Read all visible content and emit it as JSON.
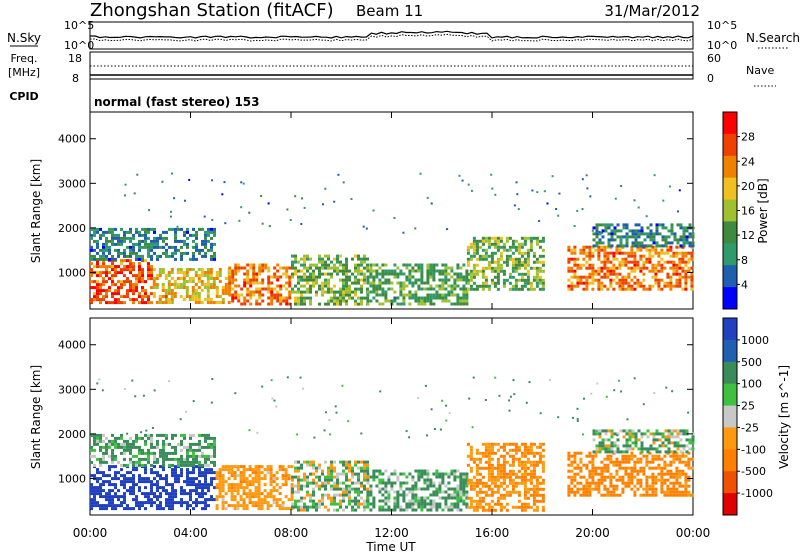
{
  "header": {
    "title": "Zhongshan Station (fitACF)",
    "beam": "Beam 11",
    "date": "31/Mar/2012"
  },
  "top_panels": {
    "nsky_label": "N.Sky",
    "nsky_ticks": [
      "10^5",
      "10^0"
    ],
    "nsearch_label": "N.Search",
    "nsearch_ticks": [
      "10^5",
      "10^0"
    ],
    "freq_label": "Freq.",
    "freq_unit": "[MHz]",
    "freq_ticks": [
      "18",
      "8"
    ],
    "nave_label": "Nave",
    "nave_ticks": [
      "60",
      "0"
    ],
    "cpid_label": "CPID",
    "cpid_text": "normal (fast stereo) 153"
  },
  "colors": {
    "power_scale": [
      "#0000ff",
      "#1f5fb0",
      "#2f9b6a",
      "#3e8a3e",
      "#a0c030",
      "#f0c020",
      "#f08000",
      "#f04000",
      "#ff0000"
    ],
    "velocity_scale": [
      "#2040c0",
      "#2060b0",
      "#3a8c5a",
      "#40c040",
      "#c8c8c8",
      "#ff9a10",
      "#ff8000",
      "#f05000",
      "#e00000"
    ]
  },
  "chart_data": [
    {
      "type": "heatmap",
      "title": "",
      "xlabel": "Time UT",
      "ylabel": "Slant Range [km]",
      "x_ticks": [
        "00:00",
        "04:00",
        "08:00",
        "12:00",
        "16:00",
        "20:00",
        "00:00"
      ],
      "y_ticks": [
        "1000",
        "2000",
        "3000",
        "4000"
      ],
      "xlim": [
        0,
        24
      ],
      "ylim": [
        180,
        4600
      ],
      "colorbar_label": "Power [dB]",
      "colorbar_ticks": [
        "4",
        "8",
        "12",
        "16",
        "20",
        "24",
        "28"
      ],
      "colorbar_range": [
        0,
        32
      ],
      "bands": [
        {
          "t": [
            0,
            2.5
          ],
          "range": [
            300,
            1300
          ],
          "level": 26
        },
        {
          "t": [
            0,
            5
          ],
          "range": [
            1300,
            2000
          ],
          "level": 8
        },
        {
          "t": [
            2.5,
            5.5
          ],
          "range": [
            300,
            1100
          ],
          "level": 20
        },
        {
          "t": [
            5.5,
            8
          ],
          "range": [
            300,
            1200
          ],
          "level": 24
        },
        {
          "t": [
            8,
            11
          ],
          "range": [
            300,
            1400
          ],
          "level": 14
        },
        {
          "t": [
            11,
            15
          ],
          "range": [
            300,
            1200
          ],
          "level": 12
        },
        {
          "t": [
            15,
            18
          ],
          "range": [
            600,
            1800
          ],
          "level": 14
        },
        {
          "t": [
            19,
            24
          ],
          "range": [
            600,
            1600
          ],
          "level": 24
        },
        {
          "t": [
            20,
            24
          ],
          "range": [
            1600,
            2100
          ],
          "level": 8
        }
      ]
    },
    {
      "type": "heatmap",
      "title": "",
      "xlabel": "Time UT",
      "ylabel": "Slant Range [km]",
      "x_ticks": [
        "00:00",
        "04:00",
        "08:00",
        "12:00",
        "16:00",
        "20:00",
        "00:00"
      ],
      "y_ticks": [
        "1000",
        "2000",
        "3000",
        "4000"
      ],
      "xlim": [
        0,
        24
      ],
      "ylim": [
        180,
        4600
      ],
      "colorbar_label": "Velocity [m s^-1]",
      "colorbar_ticks": [
        "1000",
        "500",
        "100",
        "25",
        "-25",
        "-100",
        "-500",
        "-1000"
      ],
      "bands": [
        {
          "t": [
            0,
            5
          ],
          "range": [
            300,
            1300
          ],
          "level": 1000
        },
        {
          "t": [
            0,
            5
          ],
          "range": [
            1300,
            2000
          ],
          "level": 100
        },
        {
          "t": [
            5,
            8
          ],
          "range": [
            300,
            1300
          ],
          "level": -200
        },
        {
          "t": [
            8,
            11
          ],
          "range": [
            300,
            1400
          ],
          "level": 0
        },
        {
          "t": [
            11,
            15
          ],
          "range": [
            300,
            1200
          ],
          "level": 100
        },
        {
          "t": [
            15,
            18
          ],
          "range": [
            300,
            1800
          ],
          "level": -300
        },
        {
          "t": [
            19,
            24
          ],
          "range": [
            600,
            1600
          ],
          "level": -400
        },
        {
          "t": [
            20,
            24
          ],
          "range": [
            1600,
            2100
          ],
          "level": 50
        }
      ]
    }
  ]
}
